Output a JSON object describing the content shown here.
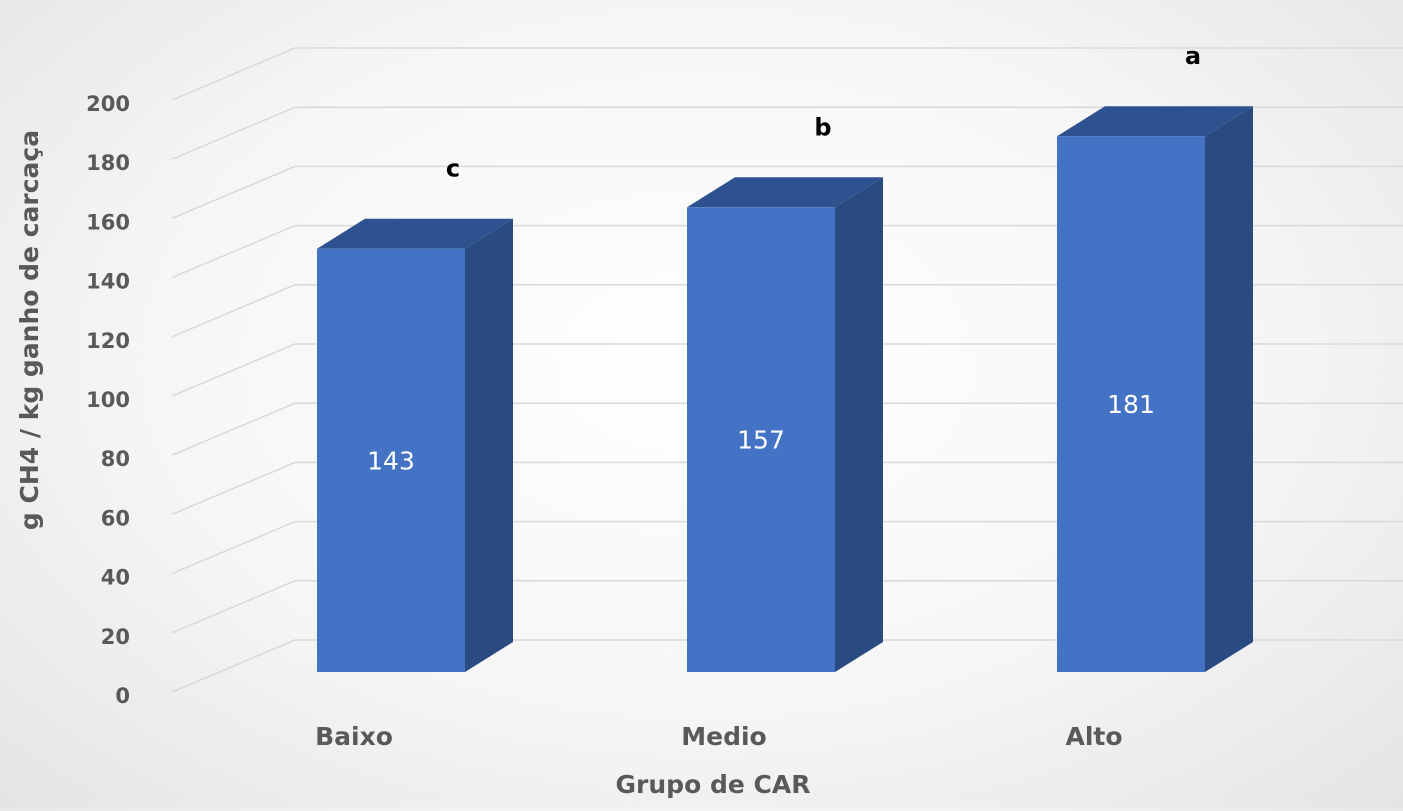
{
  "chart_data": {
    "type": "bar",
    "style": "3d-column",
    "categories": [
      "Baixo",
      "Medio",
      "Alto"
    ],
    "values": [
      143,
      157,
      181
    ],
    "value_labels": [
      "143",
      "157",
      "181"
    ],
    "significance_letters": [
      "c",
      "b",
      "a"
    ],
    "xlabel": "Grupo de CAR",
    "ylabel": "g CH4 / kg ganho de carcaça",
    "ylim": [
      0,
      200
    ],
    "yticks": [
      0,
      20,
      40,
      60,
      80,
      100,
      120,
      140,
      160,
      180,
      200
    ],
    "grid": true,
    "legend": false,
    "colors": {
      "bar_front": "#4472c4",
      "bar_side": "#2a4a82",
      "bar_top": "#2e5290",
      "grid": "#d9d9d9",
      "text": "#595959"
    }
  }
}
